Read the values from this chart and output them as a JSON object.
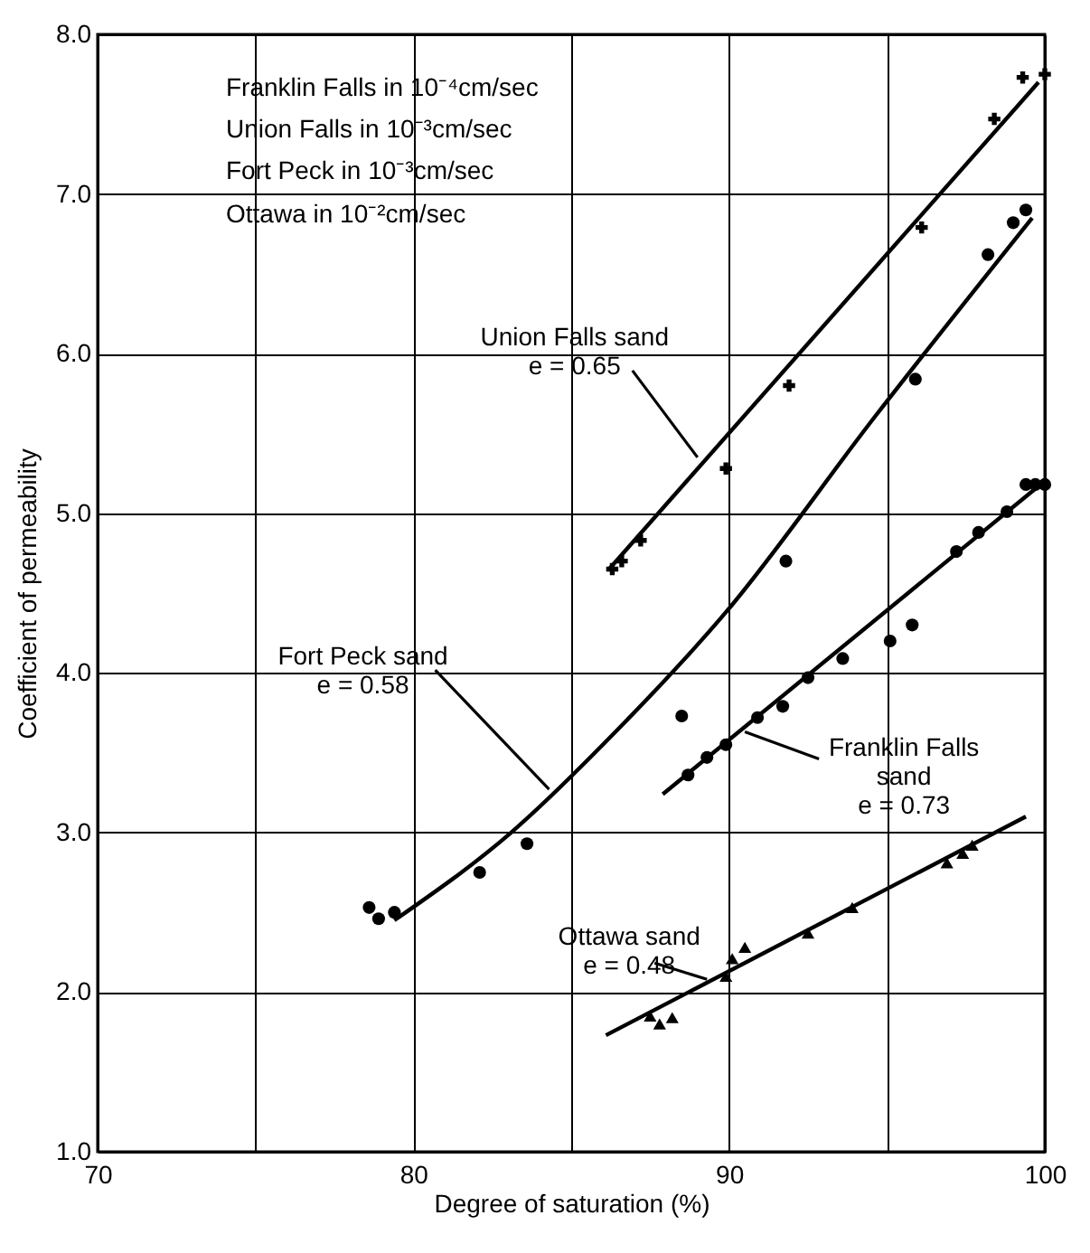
{
  "chart_data": {
    "type": "scatter",
    "xlabel": "Degree of saturation (%)",
    "ylabel": "Coefficient of permeability",
    "xlim": [
      70,
      100
    ],
    "ylim": [
      1,
      8
    ],
    "xticks": [
      70,
      {
        "value": 75,
        "label": null
      },
      80,
      {
        "value": 85,
        "label": null
      },
      90,
      {
        "value": 95,
        "label": null
      },
      100
    ],
    "yticks": [
      {
        "value": 1,
        "label": "1.0"
      },
      {
        "value": 2,
        "label": "2.0"
      },
      {
        "value": 3,
        "label": "3.0"
      },
      {
        "value": 4,
        "label": "4.0"
      },
      {
        "value": 5,
        "label": "5.0"
      },
      {
        "value": 6,
        "label": "6.0"
      },
      {
        "value": 7,
        "label": "7.0"
      },
      {
        "value": 8,
        "label": "8.0"
      }
    ],
    "grid": true,
    "series": [
      {
        "marker": "cross",
        "color": "#000000",
        "x": [
          86.3,
          86.6,
          87.2,
          89.9,
          91.9,
          96.1,
          98.4,
          99.3,
          100
        ],
        "values": [
          4.65,
          4.7,
          4.83,
          5.28,
          5.8,
          6.79,
          7.47,
          7.73,
          7.75
        ]
      },
      {
        "marker": "circle",
        "color": "#000000",
        "x": [
          78.6,
          78.9,
          79.4,
          82.1,
          83.6,
          88.5,
          91.8,
          95.9,
          98.2,
          99.0,
          99.4
        ],
        "values": [
          2.53,
          2.46,
          2.5,
          2.75,
          2.93,
          3.73,
          4.7,
          5.84,
          6.62,
          6.82,
          6.9
        ]
      },
      {
        "marker": "circle",
        "color": "#000000",
        "x": [
          88.7,
          89.3,
          89.9,
          90.9,
          91.7,
          92.5,
          93.6,
          95.1,
          95.8,
          97.2,
          97.9,
          98.8,
          99.4,
          99.7,
          100
        ],
        "values": [
          3.36,
          3.47,
          3.55,
          3.72,
          3.79,
          3.97,
          4.09,
          4.2,
          4.3,
          4.76,
          4.88,
          5.01,
          5.18,
          5.18,
          5.18
        ]
      },
      {
        "marker": "triangle",
        "color": "#000000",
        "x": [
          87.5,
          87.8,
          88.2,
          89.9,
          90.1,
          90.5,
          92.5,
          93.9,
          96.9,
          97.4,
          97.7
        ],
        "values": [
          1.85,
          1.8,
          1.84,
          2.1,
          2.21,
          2.28,
          2.37,
          2.53,
          2.81,
          2.87,
          2.92
        ]
      },
      {
        "type": "line",
        "marker": "none",
        "color": "#000000",
        "x": [
          86.2,
          99.8
        ],
        "values": [
          4.65,
          7.7
        ]
      },
      {
        "type": "line",
        "marker": "none",
        "color": "#000000",
        "x": [
          79.4,
          83.1,
          86.5,
          89.9,
          94.6,
          99.6
        ],
        "values": [
          2.45,
          3.0,
          3.65,
          4.38,
          5.6,
          6.85
        ]
      },
      {
        "type": "line",
        "marker": "none",
        "color": "#000000",
        "x": [
          87.9,
          99.8
        ],
        "values": [
          3.24,
          5.17
        ]
      },
      {
        "type": "line",
        "marker": "none",
        "color": "#000000",
        "x": [
          86.1,
          99.4
        ],
        "values": [
          1.73,
          3.1
        ]
      }
    ],
    "annotations": [
      "Franklin Falls in 10⁻⁴cm/sec",
      "Union Falls    in 10⁻³cm/sec",
      "Fort Peck       in 10⁻³cm/sec",
      "Ottawa           in 10⁻²cm/sec",
      {
        "text": "Union Falls sand\ne = 0.65",
        "x": 89.0,
        "y": 5.35
      },
      {
        "text": "Fort Peck sand\ne = 0.58",
        "x": 84.3,
        "y": 3.27
      },
      {
        "text": "Franklin Falls\nsand\ne = 0.73",
        "x": 90.5,
        "y": 3.63
      },
      {
        "text": "Ottawa sand\ne = 0.48",
        "x": 89.3,
        "y": 2.08
      }
    ]
  }
}
